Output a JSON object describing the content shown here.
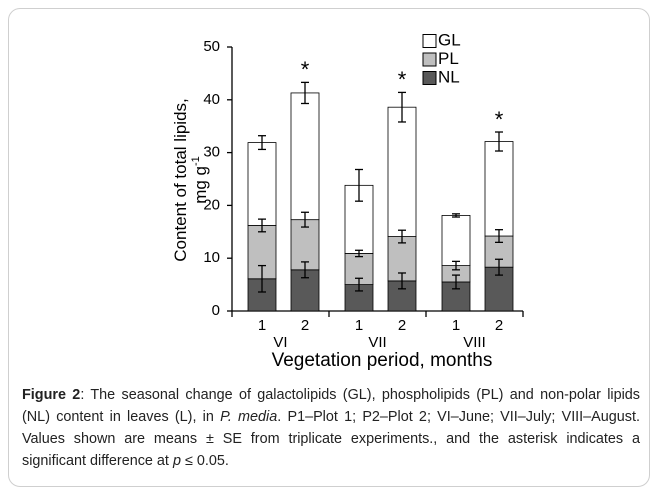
{
  "chart_data": {
    "type": "stacked_bar",
    "ylabel": {
      "line1": "Content of total lipids,",
      "line2": "mg g",
      "line2_sup": "-1"
    },
    "xlabel": "Vegetation period, months",
    "categories": [
      "1",
      "2",
      "1",
      "2",
      "1",
      "2"
    ],
    "groups": [
      "VI",
      "VII",
      "VIII"
    ],
    "series": [
      {
        "name": "NL",
        "color": "#595959",
        "values": [
          6.1,
          7.8,
          5.0,
          5.7,
          5.5,
          8.3
        ],
        "errors": [
          2.5,
          1.5,
          1.2,
          1.5,
          1.3,
          1.5
        ]
      },
      {
        "name": "PL",
        "color": "#bfbfbf",
        "values": [
          10.1,
          9.5,
          5.9,
          8.4,
          3.1,
          5.9
        ],
        "errors": [
          1.2,
          1.4,
          0.6,
          1.2,
          0.8,
          1.2
        ]
      },
      {
        "name": "GL",
        "color": "#ffffff",
        "values": [
          15.7,
          24.0,
          12.9,
          24.5,
          9.5,
          17.9
        ],
        "errors": [
          1.3,
          2.0,
          3.0,
          2.8,
          0.3,
          1.8
        ]
      }
    ],
    "significance": [
      null,
      "*",
      null,
      "*",
      null,
      "*"
    ],
    "ylim": [
      0,
      50
    ],
    "yticks": [
      0,
      10,
      20,
      30,
      40,
      50
    ],
    "legend": "top-right"
  },
  "caption": [
    {
      "text": "Figure 2",
      "style": "bold"
    },
    {
      "text": ": The seasonal change of galactolipids (GL), phospholipids (PL) and non-polar lipids (NL) content in leaves (L), in ",
      "style": "normal"
    },
    {
      "text": "P. media",
      "style": "italic"
    },
    {
      "text": ". P1–Plot 1; P2–Plot 2; VI–June; VII–July; VIII–August. Values shown are means ± SE from triplicate experiments., and the asterisk indicates a significant difference at ",
      "style": "normal"
    },
    {
      "text": "p",
      "style": "italic"
    },
    {
      "text": " ≤ 0.05.",
      "style": "normal"
    }
  ]
}
